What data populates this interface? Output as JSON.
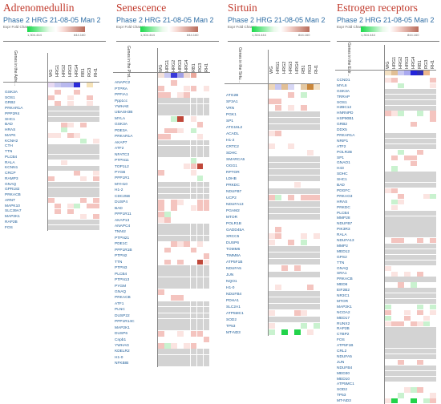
{
  "colors": {
    "title": "#c0392b",
    "subtitle": "#2e6da4",
    "gene": "#1a5a96",
    "grey": "#d3d3d3",
    "green": "#22d34a",
    "lightgreen": "#c9f2cf",
    "pink": "#f4c4bf",
    "lightpink": "#fbe4e1",
    "red": "#c0483a",
    "blue": "#2c2cd9",
    "lightblue": "#a9a9f0",
    "tan": "#e0bf95",
    "orange": "#c9863a"
  },
  "panels": [
    {
      "title": "Adrenomedullin",
      "subtitle": "Phase 2 HRG 21-08-05 Man 2",
      "legend_label": "Expr Fold Change",
      "legend_min": "1,304.444",
      "legend_max": "844.160",
      "genes_header": "Genes in the Adre...",
      "columns": [
        "WG",
        "HRG1",
        "HRG2",
        "HRG3",
        "HRG4",
        "RB1",
        "RG3",
        "RH1"
      ],
      "genes": [
        "GSK3A",
        "SOS1",
        "GRB2",
        "PRKAR1A",
        "PPP2R4",
        "SHC1",
        "BAD",
        "HRAS",
        "MAPK",
        "KCNH2",
        "CTH",
        "TTN",
        "PLCB4",
        "RALA",
        "KCNN1",
        "CRCP",
        "RAMP3",
        "GNAQ",
        "GPR182",
        "PRKACB",
        "ARNT",
        "MAPK10",
        "SLC39A7",
        "MAP2K1",
        "RAP2B",
        "FOS"
      ]
    },
    {
      "title": "Senescence",
      "subtitle": "Phase 2 HRG 21-08-05 Man 2",
      "legend_label": "Expr Fold Change",
      "legend_min": "1,304.444",
      "legend_max": "844.160",
      "genes_header": "Genes in the Prot...",
      "columns": [
        "WG",
        "HRG1",
        "HRG2",
        "HRG3",
        "HRG4",
        "RB1",
        "RG3",
        "RH1"
      ],
      "genes": [
        "ANAPC2",
        "PTPRA",
        "PPFIA1",
        "Ppp1cc",
        "YWHAE",
        "UBASH3B",
        "MYLA",
        "GSK3A",
        "PDE3A",
        "PRKAR1A",
        "AKAP7",
        "ATF2",
        "NFATC3",
        "PTPN11",
        "TOP1L2",
        "PYGB",
        "PPP1R1",
        "MYH10",
        "H1-2",
        "CDC25B",
        "DUSP4",
        "BAD",
        "PPP1R11",
        "AKAP13",
        "ANAPC4",
        "TNNI2",
        "PTPN21",
        "PDE1C",
        "PPP1R1B",
        "PTPN2",
        "TTN",
        "PTPN3",
        "PLCB4",
        "PTPN13",
        "PYGM",
        "GNAQ",
        "PRKACB",
        "ATF1",
        "PLNC",
        "DUSP22",
        "PPP1R14C",
        "MAP2K1",
        "DUSP6",
        "Cnpb1",
        "YWHAG",
        "KDELR2",
        "H1-0",
        "NFKBIB"
      ]
    },
    {
      "title": "Sirtuin",
      "subtitle": "Phase 2 HRG 21-08-05 Man 2",
      "legend_label": "Expr Fold Change",
      "legend_min": "1,304.444",
      "legend_max": "844.160",
      "genes_header": "Genes in the Sirtu...",
      "columns": [
        "WG",
        "HRG1",
        "HRG2",
        "HRG3",
        "HRG4",
        "RB1",
        "RG3",
        "RH1"
      ],
      "genes": [
        "ATG2B",
        "SF3A1",
        "VRN",
        "PGK1",
        "SP1",
        "ATG16L2",
        "ACADL",
        "H1-2",
        "CRTC2",
        "SDHC",
        "SMARCA5",
        "OGG1",
        "RPTOR",
        "LDHB",
        "PRKDC",
        "NDUFB7",
        "UCP2",
        "NDUFA13",
        "PGAM2",
        "MTOR",
        "POLR1B",
        "GADD45A",
        "XRCC5",
        "DUSP6",
        "TOMM6",
        "TIMM8A",
        "ATP5F1B",
        "NDUFA5",
        "JUN",
        "NQO1",
        "H1-0",
        "NDUFB4",
        "PDHA1",
        "SLC2A1",
        "ATP5MC1",
        "SOD2",
        "TP53",
        "MT-ND3"
      ]
    },
    {
      "title": "Estrogen receptors",
      "subtitle": "Phase 2 HRG 21-08-05 Man 2",
      "legend_label": "Expr Fold Change",
      "legend_min": "1,304.444",
      "legend_max": "844.160",
      "genes_header": "Genes in the Estr...",
      "columns": [
        "WG",
        "HRG1",
        "HRG2",
        "HRG3",
        "HRG4",
        "RB1",
        "RG3",
        "RH1"
      ],
      "genes": [
        "CCND1",
        "MYL6",
        "GSK3A",
        "TRRAP",
        "SOS1",
        "H2BC12",
        "HNRNPD",
        "HSP90B1",
        "GRB2",
        "DDX5",
        "PRKAR1A",
        "NRIP1",
        "ATF2",
        "POLR2B",
        "SP1",
        "GNAO1",
        "H43",
        "SDHC",
        "SHC1",
        "BAD",
        "PDGFC",
        "PRKAG3",
        "HRAS",
        "PRKDC",
        "PLCB4",
        "MMP28",
        "NDUFB7",
        "PIK3R3",
        "RALA",
        "NDUFA13",
        "MMP2",
        "MED12",
        "GPS2",
        "TTN",
        "GNAQ",
        "SRA1",
        "PRKACB",
        "MED6",
        "EIF2B2",
        "NR3C1",
        "MTOR",
        "MAP2K1",
        "NCOA2",
        "MED17",
        "RUNX2",
        "RAP2B",
        "CTBP2",
        "FOS",
        "ATP5F1B",
        "CRL2",
        "NDUFA5",
        "JUN",
        "NDUFB4",
        "MED30",
        "MED10",
        "ATP5MC1",
        "SOD2",
        "TP53",
        "MT-ND3"
      ]
    }
  ]
}
